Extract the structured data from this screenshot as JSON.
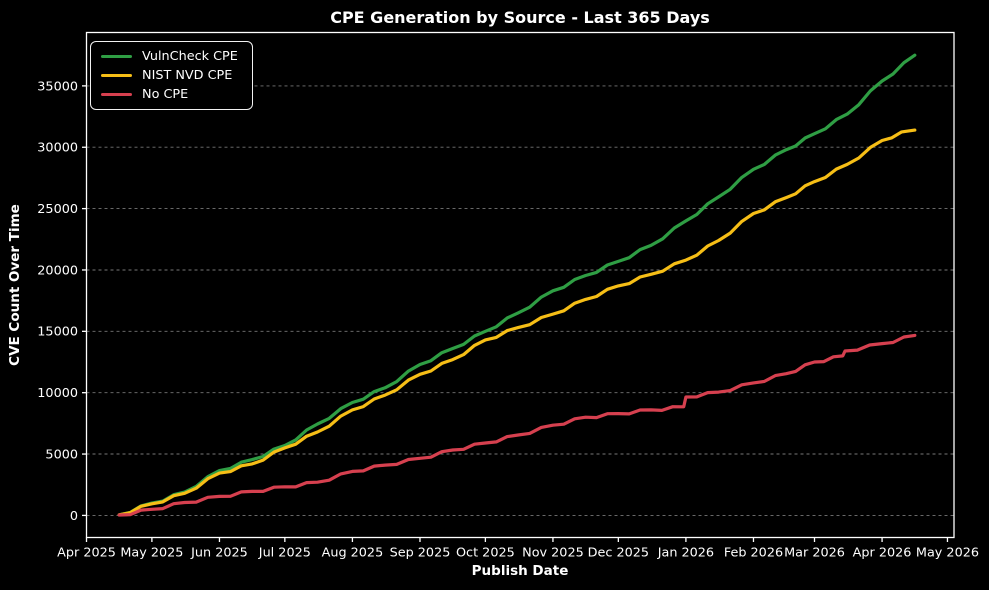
{
  "chart_data": {
    "type": "line",
    "title": "CPE Generation by Source - Last 365 Days",
    "xlabel": "Publish Date",
    "ylabel": "CVE Count Over Time",
    "legend_position": "upper-left",
    "grid": "horizontal-dashed",
    "xlim": [
      "2025-04-01",
      "2026-05-04"
    ],
    "ylim": [
      -1800,
      39350
    ],
    "y_ticks": [
      0,
      5000,
      10000,
      15000,
      20000,
      25000,
      30000,
      35000
    ],
    "x_ticks": [
      {
        "date": "2025-04-01",
        "label": "Apr 2025"
      },
      {
        "date": "2025-05-01",
        "label": "May 2025"
      },
      {
        "date": "2025-06-01",
        "label": "Jun 2025"
      },
      {
        "date": "2025-07-01",
        "label": "Jul 2025"
      },
      {
        "date": "2025-08-01",
        "label": "Aug 2025"
      },
      {
        "date": "2025-09-01",
        "label": "Sep 2025"
      },
      {
        "date": "2025-10-01",
        "label": "Oct 2025"
      },
      {
        "date": "2025-11-01",
        "label": "Nov 2025"
      },
      {
        "date": "2025-12-01",
        "label": "Dec 2025"
      },
      {
        "date": "2026-01-01",
        "label": "Jan 2026"
      },
      {
        "date": "2026-02-01",
        "label": "Feb 2026"
      },
      {
        "date": "2026-03-01",
        "label": "Mar 2026"
      },
      {
        "date": "2026-04-01",
        "label": "Apr 2026"
      },
      {
        "date": "2026-05-01",
        "label": "May 2026"
      }
    ],
    "colors": {
      "background": "#000000",
      "text": "#ffffff",
      "grid": "#8c8c8c",
      "spine": "#ffffff"
    },
    "series": [
      {
        "name": "VulnCheck CPE",
        "color": "#2f9e44",
        "points": [
          [
            "2025-04-16",
            50
          ],
          [
            "2025-05-01",
            1000
          ],
          [
            "2025-05-16",
            1900
          ],
          [
            "2025-06-01",
            3650
          ],
          [
            "2025-06-16",
            4550
          ],
          [
            "2025-07-01",
            5700
          ],
          [
            "2025-07-16",
            7450
          ],
          [
            "2025-08-01",
            9200
          ],
          [
            "2025-08-16",
            10400
          ],
          [
            "2025-09-01",
            12300
          ],
          [
            "2025-09-16",
            13600
          ],
          [
            "2025-10-01",
            15000
          ],
          [
            "2025-10-16",
            16500
          ],
          [
            "2025-11-01",
            18300
          ],
          [
            "2025-11-16",
            19550
          ],
          [
            "2025-12-01",
            20700
          ],
          [
            "2025-12-16",
            22000
          ],
          [
            "2026-01-01",
            24000
          ],
          [
            "2026-01-16",
            25950
          ],
          [
            "2026-02-01",
            28200
          ],
          [
            "2026-02-16",
            29800
          ],
          [
            "2026-03-01",
            31100
          ],
          [
            "2026-03-16",
            32700
          ],
          [
            "2026-04-01",
            35400
          ],
          [
            "2026-04-16",
            37500
          ]
        ]
      },
      {
        "name": "NIST NVD CPE",
        "color": "#f6be16",
        "points": [
          [
            "2025-04-16",
            50
          ],
          [
            "2025-05-01",
            950
          ],
          [
            "2025-05-16",
            1800
          ],
          [
            "2025-06-01",
            3450
          ],
          [
            "2025-06-16",
            4200
          ],
          [
            "2025-07-01",
            5500
          ],
          [
            "2025-07-16",
            6800
          ],
          [
            "2025-08-01",
            8600
          ],
          [
            "2025-08-16",
            9800
          ],
          [
            "2025-09-01",
            11500
          ],
          [
            "2025-09-16",
            12700
          ],
          [
            "2025-10-01",
            14300
          ],
          [
            "2025-10-16",
            15300
          ],
          [
            "2025-11-01",
            16400
          ],
          [
            "2025-11-16",
            17600
          ],
          [
            "2025-12-01",
            18700
          ],
          [
            "2025-12-16",
            19650
          ],
          [
            "2026-01-01",
            20800
          ],
          [
            "2026-01-16",
            22400
          ],
          [
            "2026-02-01",
            24600
          ],
          [
            "2026-02-16",
            25900
          ],
          [
            "2026-03-01",
            27200
          ],
          [
            "2026-03-16",
            28600
          ],
          [
            "2026-04-01",
            30550
          ],
          [
            "2026-04-10",
            31250
          ],
          [
            "2026-04-16",
            31400
          ]
        ]
      },
      {
        "name": "No CPE",
        "color": "#d6404f",
        "points": [
          [
            "2025-04-16",
            30
          ],
          [
            "2025-05-01",
            500
          ],
          [
            "2025-05-16",
            1050
          ],
          [
            "2025-06-01",
            1550
          ],
          [
            "2025-06-16",
            1960
          ],
          [
            "2025-07-01",
            2330
          ],
          [
            "2025-07-16",
            2710
          ],
          [
            "2025-08-01",
            3590
          ],
          [
            "2025-08-16",
            4100
          ],
          [
            "2025-09-01",
            4650
          ],
          [
            "2025-09-16",
            5330
          ],
          [
            "2025-10-01",
            5900
          ],
          [
            "2025-10-16",
            6550
          ],
          [
            "2025-11-01",
            7350
          ],
          [
            "2025-11-16",
            8000
          ],
          [
            "2025-12-01",
            8300
          ],
          [
            "2025-12-16",
            8600
          ],
          [
            "2025-12-31",
            8850
          ],
          [
            "2026-01-01",
            9650
          ],
          [
            "2026-01-16",
            10050
          ],
          [
            "2026-02-01",
            10800
          ],
          [
            "2026-02-16",
            11550
          ],
          [
            "2026-03-01",
            12500
          ],
          [
            "2026-03-14",
            13000
          ],
          [
            "2026-03-15",
            13400
          ],
          [
            "2026-04-01",
            14000
          ],
          [
            "2026-04-16",
            14670
          ]
        ]
      }
    ]
  }
}
